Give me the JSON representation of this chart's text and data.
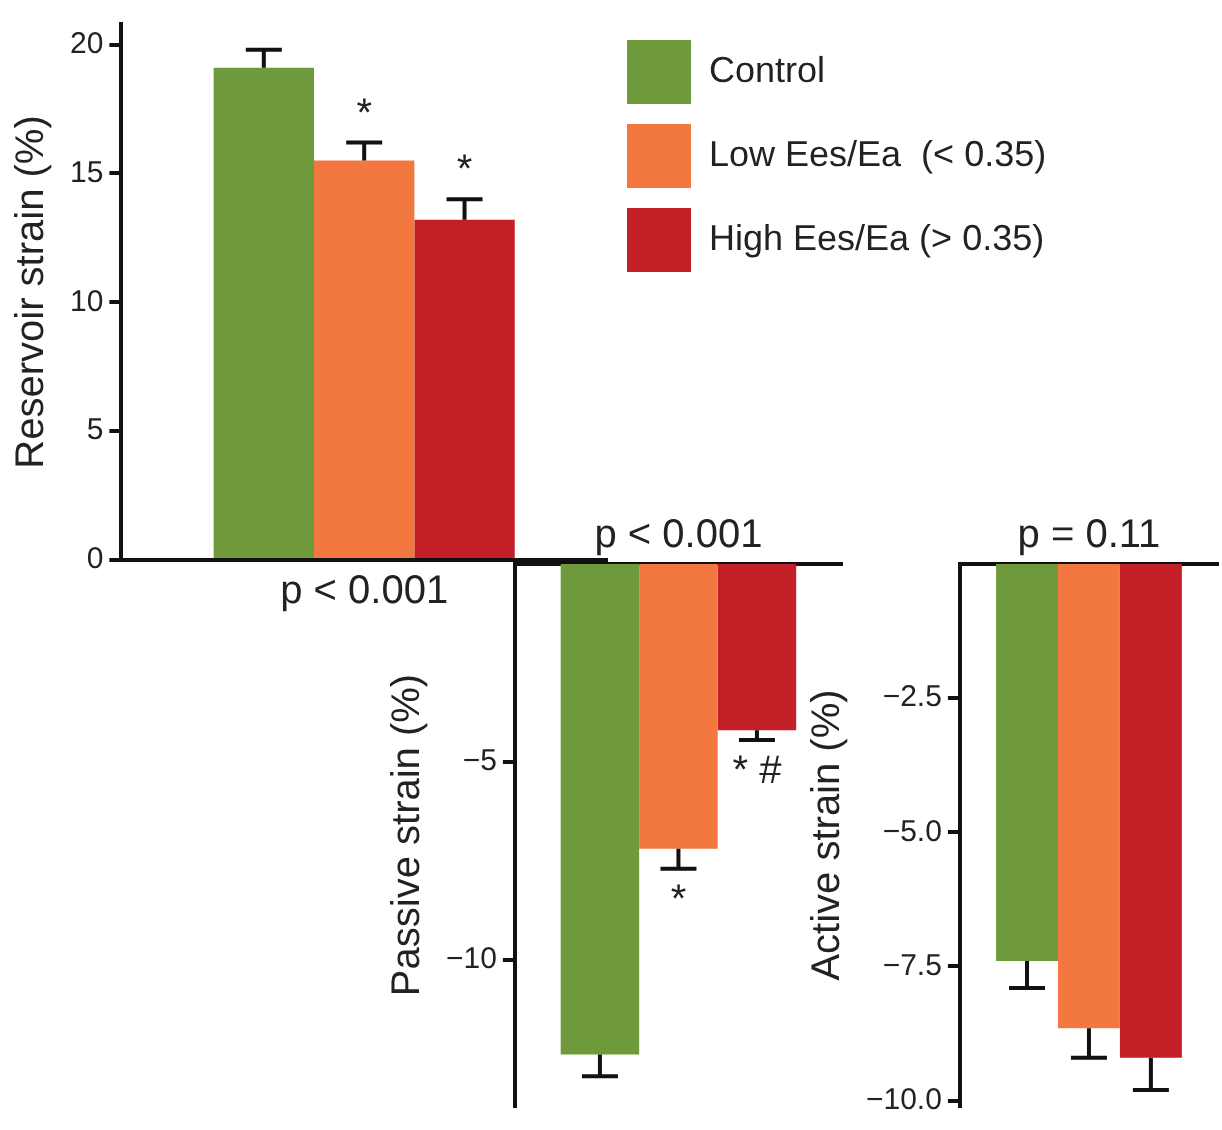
{
  "chart_data": [
    {
      "type": "bar",
      "ylabel": "Reservoir strain (%)",
      "categories": [
        null
      ],
      "ylim": [
        0,
        20.8
      ],
      "yticks": [
        0,
        5,
        10,
        15,
        20
      ],
      "tick_labels": "y",
      "grid": false,
      "legend": "top right",
      "annotations": [
        "p < 0.001"
      ],
      "series": [
        {
          "name": "Control",
          "color": "#6f9a3c",
          "values": [
            19.1
          ],
          "errors": [
            0.7
          ]
        },
        {
          "name": "Low Ees/Ea  (< 0.35)",
          "color": "#f27840",
          "values": [
            15.5
          ],
          "errors": [
            0.7
          ],
          "value_labels": [
            "*"
          ]
        },
        {
          "name": "High Ees/Ea (> 0.35)",
          "color": "#c21f27",
          "values": [
            13.2
          ],
          "errors": [
            0.8
          ],
          "value_labels": [
            "*"
          ]
        }
      ]
    },
    {
      "type": "bar",
      "ylabel": "Passive strain (%)",
      "categories": [
        null
      ],
      "ylim": [
        -13.7,
        0
      ],
      "yticks": [
        {
          "value": -5,
          "label": "−5"
        },
        {
          "value": -10,
          "label": "−10"
        }
      ],
      "tick_labels": "y",
      "grid": false,
      "annotations": [
        "p < 0.001"
      ],
      "series": [
        {
          "color": "#6f9a3c",
          "values": [
            -12.4
          ],
          "errors": [
            0.55
          ]
        },
        {
          "color": "#f27840",
          "values": [
            -7.2
          ],
          "errors": [
            0.5
          ],
          "value_labels": [
            "*"
          ]
        },
        {
          "color": "#c21f27",
          "values": [
            -4.2
          ],
          "errors": [
            0.25
          ],
          "value_labels": [
            "* #"
          ]
        }
      ]
    },
    {
      "type": "bar",
      "ylabel": "Active strain (%)",
      "categories": [
        null
      ],
      "ylim": [
        -10.1,
        0
      ],
      "yticks": [
        {
          "value": -2.5,
          "label": "−2.5"
        },
        {
          "value": -5,
          "label": "−5.0"
        },
        {
          "value": -7.5,
          "label": "−7.5"
        },
        {
          "value": -10,
          "label": "−10.0"
        }
      ],
      "tick_labels": "y",
      "grid": false,
      "annotations": [
        "p = 0.11"
      ],
      "series": [
        {
          "color": "#6f9a3c",
          "values": [
            -7.4
          ],
          "errors": [
            0.5
          ]
        },
        {
          "color": "#f27840",
          "values": [
            -8.65
          ],
          "errors": [
            0.55
          ]
        },
        {
          "color": "#c21f27",
          "values": [
            -9.2
          ],
          "errors": [
            0.6
          ]
        }
      ]
    }
  ]
}
